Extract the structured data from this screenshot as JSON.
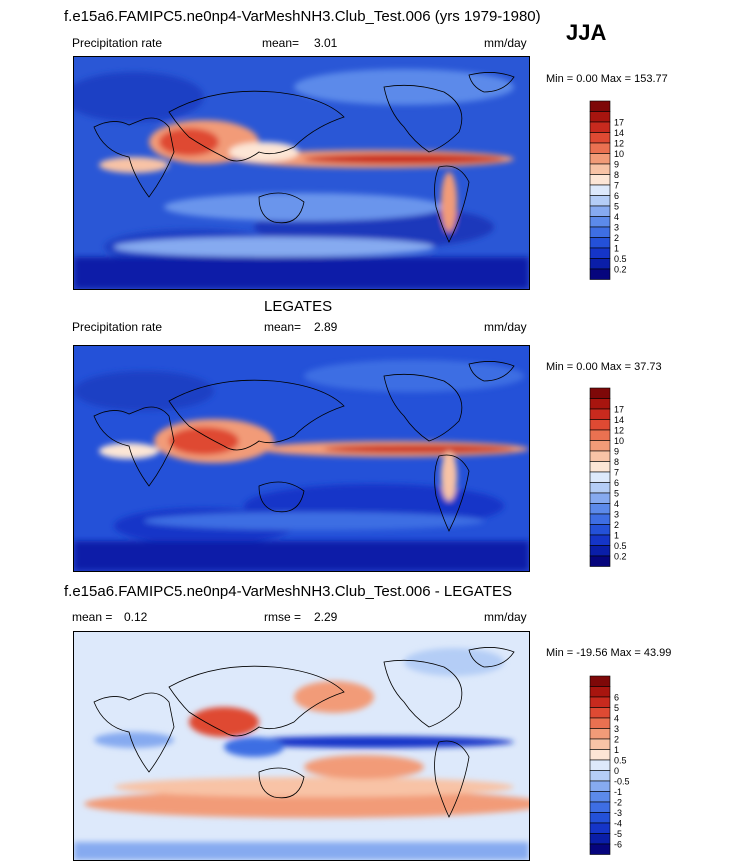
{
  "header": {
    "title": "f.e15a6.FAMIPC5.ne0np4-VarMeshNH3.Club_Test.006 (yrs 1979-1980)",
    "season": "JJA"
  },
  "colors": {
    "precip_palette": [
      "#06057d",
      "#0a1ea8",
      "#1535c8",
      "#2451d8",
      "#3e6ee3",
      "#5c8aea",
      "#86aaf0",
      "#b4cdf6",
      "#dde9fb",
      "#fde6d6",
      "#f8c3a6",
      "#f29b78",
      "#ea7151",
      "#df4a33",
      "#c82a1e",
      "#a8150f",
      "#7e0808"
    ],
    "diff_palette": [
      "#06057d",
      "#0a1ea8",
      "#1535c8",
      "#2451d8",
      "#3e6ee3",
      "#5c8aea",
      "#86aaf0",
      "#b4cdf6",
      "#dde9fb",
      "#fde6d6",
      "#f8c3a6",
      "#f29b78",
      "#ea7151",
      "#df4a33",
      "#c82a1e",
      "#a8150f",
      "#7e0808"
    ]
  },
  "panels": [
    {
      "panel_title": "",
      "left_label": "Precipitation rate",
      "mean_label": "mean=",
      "mean_value": "3.01",
      "units": "mm/day",
      "min_label": "Min =",
      "min_value": "0.00",
      "max_label": "Max =",
      "max_value": "153.77"
    },
    {
      "panel_title": "LEGATES",
      "left_label": "Precipitation rate",
      "mean_label": "mean=",
      "mean_value": "2.89",
      "units": "mm/day",
      "min_label": "Min =",
      "min_value": "0.00",
      "max_label": "Max =",
      "max_value": "37.73"
    },
    {
      "panel_title": "f.e15a6.FAMIPC5.ne0np4-VarMeshNH3.Club_Test.006 - LEGATES",
      "left_label": "mean =",
      "left_value": "0.12",
      "rmse_label": "rmse =",
      "rmse_value": "2.29",
      "units": "mm/day",
      "min_label": "Min =",
      "min_value": "-19.56",
      "max_label": "Max =",
      "max_value": "43.99"
    }
  ],
  "chart_data": [
    {
      "type": "heatmap",
      "title": "f.e15a6.FAMIPC5.ne0np4-VarMeshNH3.Club_Test.006 (yrs 1979-1980)",
      "variable": "Precipitation rate",
      "units": "mm/day",
      "mean": 3.01,
      "min": 0.0,
      "max": 153.77,
      "colorbar_levels": [
        "0.2",
        "0.5",
        "1",
        "2",
        "3",
        "4",
        "5",
        "6",
        "7",
        "8",
        "9",
        "10",
        "12",
        "14",
        "17"
      ]
    },
    {
      "type": "heatmap",
      "title": "LEGATES",
      "variable": "Precipitation rate",
      "units": "mm/day",
      "mean": 2.89,
      "min": 0.0,
      "max": 37.73,
      "colorbar_levels": [
        "0.2",
        "0.5",
        "1",
        "2",
        "3",
        "4",
        "5",
        "6",
        "7",
        "8",
        "9",
        "10",
        "12",
        "14",
        "17"
      ]
    },
    {
      "type": "heatmap",
      "title": "f.e15a6.FAMIPC5.ne0np4-VarMeshNH3.Club_Test.006 - LEGATES",
      "units": "mm/day",
      "mean": 0.12,
      "rmse": 2.29,
      "min": -19.56,
      "max": 43.99,
      "colorbar_levels": [
        "-6",
        "-5",
        "-4",
        "-3",
        "-2",
        "-1",
        "-0.5",
        "0",
        "0.5",
        "1",
        "2",
        "3",
        "4",
        "5",
        "6"
      ]
    }
  ]
}
